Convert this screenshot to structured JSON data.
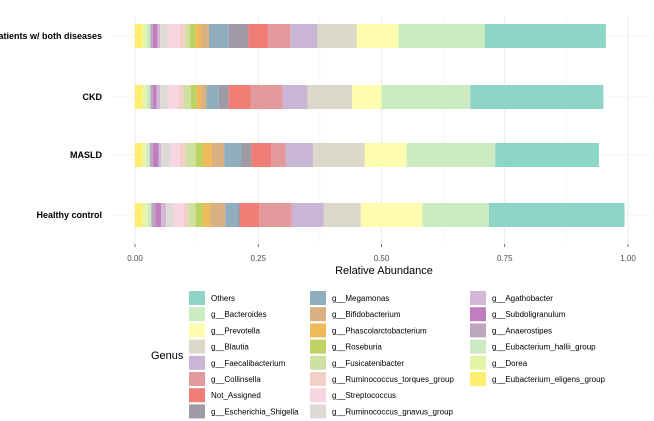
{
  "chart_data": {
    "type": "bar",
    "orientation": "horizontal",
    "stacked": true,
    "xlabel": "Relative Abundance",
    "ylabel": "",
    "xlim": [
      0,
      1
    ],
    "xticks": [
      "0.00",
      "0.25",
      "0.50",
      "0.75",
      "1.00"
    ],
    "grid": true,
    "legend_title": "Genus",
    "legend_position": "bottom",
    "categories": [
      "Patients w/ both diseases",
      "CKD",
      "MASLD",
      "Healthy control"
    ],
    "series": [
      {
        "name": "g__Eubacterium_eligens_group",
        "color": "#FFED6F",
        "values": [
          0.015,
          0.015,
          0.015,
          0.015
        ]
      },
      {
        "name": "g__Dorea",
        "color": "#E5F5A8",
        "values": [
          0.008,
          0.008,
          0.008,
          0.01
        ]
      },
      {
        "name": "g__Eubacterium_hallii_group",
        "color": "#CCEBC5",
        "values": [
          0.008,
          0.008,
          0.007,
          0.008
        ]
      },
      {
        "name": "g__Anaerostipes",
        "color": "#BCA7BC",
        "values": [
          0.005,
          0.005,
          0.006,
          0.008
        ]
      },
      {
        "name": "g__Subdoligranulum",
        "color": "#C07EC0",
        "values": [
          0.01,
          0.008,
          0.012,
          0.012
        ]
      },
      {
        "name": "g__Agathobacter",
        "color": "#D2B8D6",
        "values": [
          0.005,
          0.007,
          0.005,
          0.01
        ]
      },
      {
        "name": "g__Ruminococcus_gnavus_group",
        "color": "#DEDAD7",
        "values": [
          0.015,
          0.015,
          0.02,
          0.015
        ]
      },
      {
        "name": "g__Streptococcus",
        "color": "#F7D5E1",
        "values": [
          0.025,
          0.022,
          0.018,
          0.02
        ]
      },
      {
        "name": "g__Ruminococcus_torques_group",
        "color": "#F3CFC7",
        "values": [
          0.01,
          0.01,
          0.012,
          0.01
        ]
      },
      {
        "name": "g__Fusicatenibacter",
        "color": "#CFE0A3",
        "values": [
          0.01,
          0.015,
          0.02,
          0.015
        ]
      },
      {
        "name": "g__Roseburia",
        "color": "#BED364",
        "values": [
          0.012,
          0.012,
          0.015,
          0.015
        ]
      },
      {
        "name": "g__Phascolarctobacterium",
        "color": "#F0B95A",
        "values": [
          0.012,
          0.01,
          0.018,
          0.015
        ]
      },
      {
        "name": "g__Bifidobacterium",
        "color": "#D9B081",
        "values": [
          0.015,
          0.01,
          0.025,
          0.03
        ]
      },
      {
        "name": "g__Megamonas",
        "color": "#90AEBD",
        "values": [
          0.04,
          0.025,
          0.035,
          0.025
        ]
      },
      {
        "name": "g__Escherichia_Shigella",
        "color": "#A09AA6",
        "values": [
          0.04,
          0.02,
          0.02,
          0.005
        ]
      },
      {
        "name": "Not_Assigned",
        "color": "#EF7E77",
        "values": [
          0.04,
          0.045,
          0.04,
          0.04
        ]
      },
      {
        "name": "g__Collinsella",
        "color": "#E29A9D",
        "values": [
          0.045,
          0.065,
          0.03,
          0.065
        ]
      },
      {
        "name": "g__Faecalibacterium",
        "color": "#C9B6D6",
        "values": [
          0.055,
          0.05,
          0.055,
          0.065
        ]
      },
      {
        "name": "g__Blautia",
        "color": "#DCD9CA",
        "values": [
          0.08,
          0.09,
          0.105,
          0.075
        ]
      },
      {
        "name": "g__Prevotella",
        "color": "#FDFCAF",
        "values": [
          0.085,
          0.06,
          0.085,
          0.125
        ]
      },
      {
        "name": "g__Bacteroides",
        "color": "#CDEBC2",
        "values": [
          0.175,
          0.18,
          0.18,
          0.135
        ]
      },
      {
        "name": "Others",
        "color": "#8DD5C7",
        "values": [
          0.245,
          0.27,
          0.21,
          0.275
        ]
      }
    ],
    "legend_columns": [
      [
        "Others",
        "g__Bacteroides",
        "g__Prevotella",
        "g__Blautia",
        "g__Faecalibacterium",
        "g__Collinsella",
        "Not_Assigned",
        "g__Escherichia_Shigella"
      ],
      [
        "g__Megamonas",
        "g__Bifidobacterium",
        "g__Phascolarctobacterium",
        "g__Roseburia",
        "g__Fusicatenibacter",
        "g__Ruminococcus_torques_group",
        "g__Streptococcus",
        "g__Ruminococcus_gnavus_group"
      ],
      [
        "g__Agathobacter",
        "g__Subdoligranulum",
        "g__Anaerostipes",
        "g__Eubacterium_hallii_group",
        "g__Dorea",
        "g__Eubacterium_eligens_group"
      ]
    ]
  }
}
